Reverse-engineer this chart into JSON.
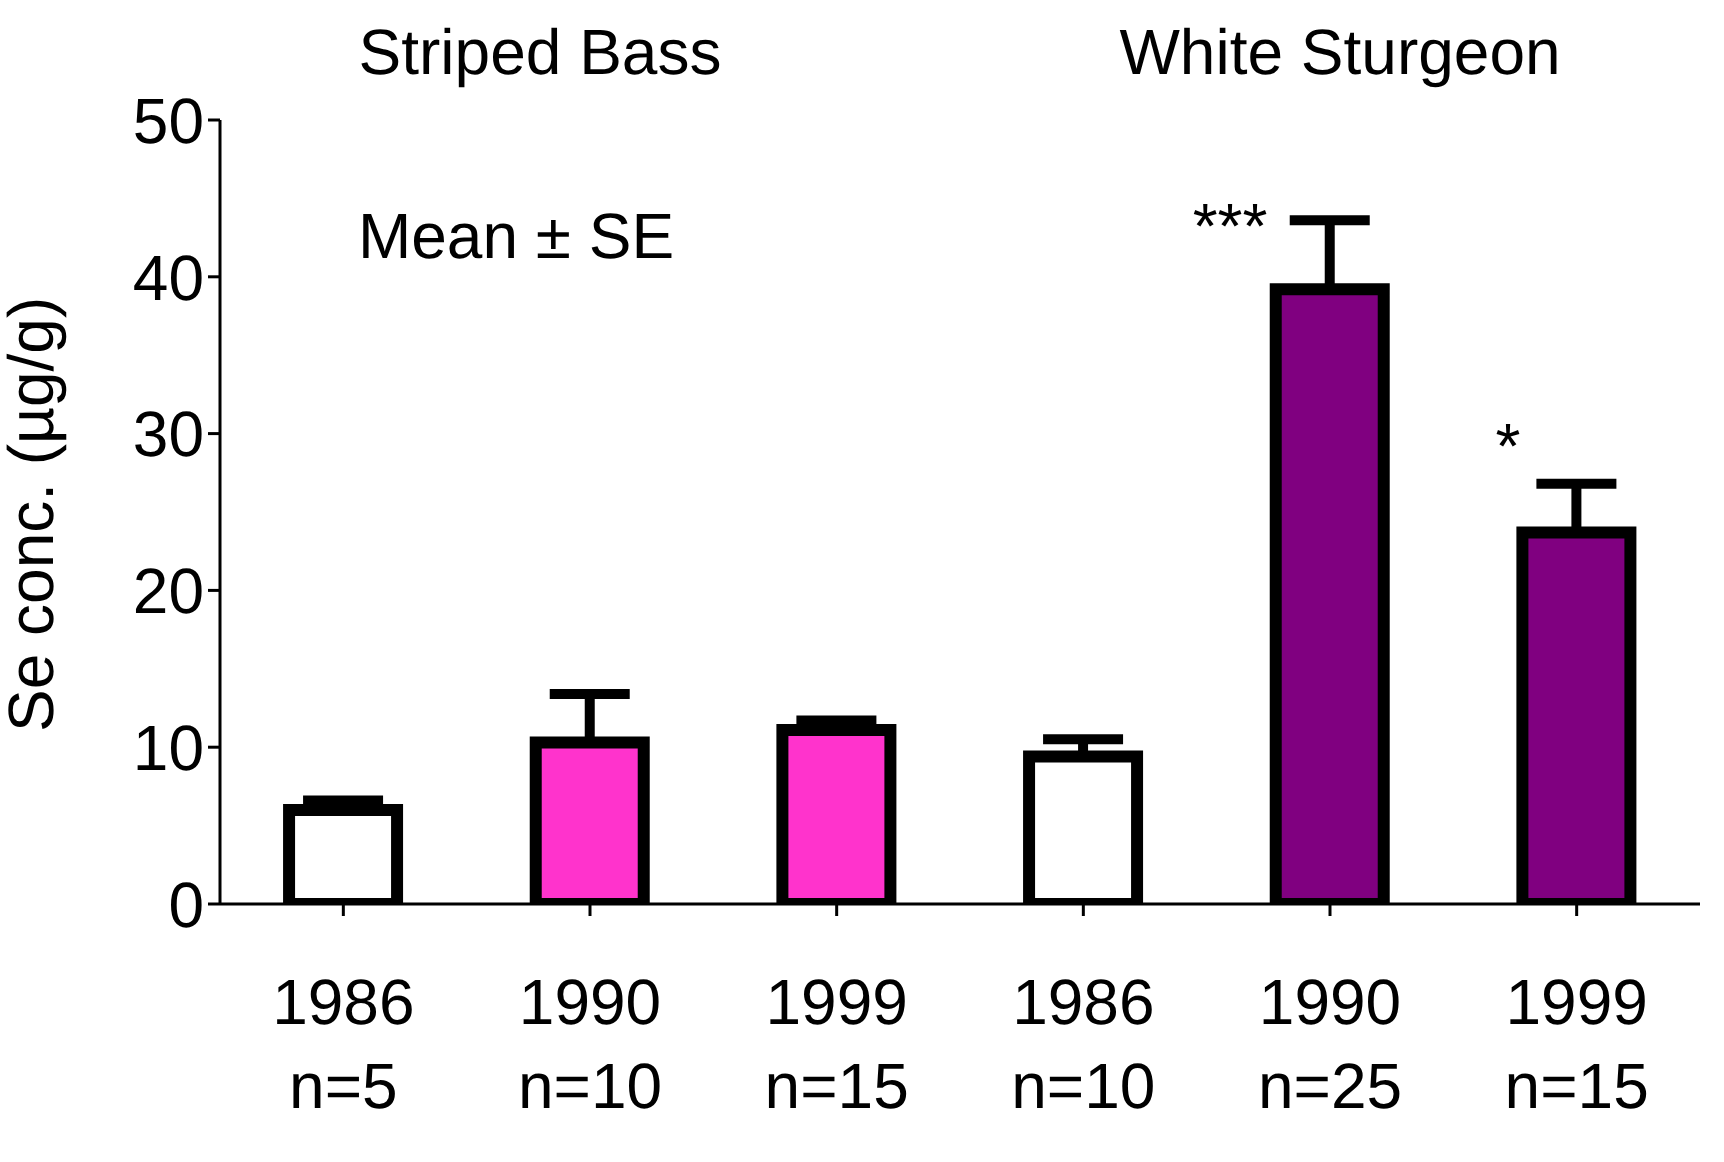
{
  "chart_data": {
    "type": "bar",
    "ylabel": "Se conc. (µg/g)",
    "categories": [
      "1986\nn=5",
      "1990\nn=10",
      "1999\nn=15",
      "1986\nn=10",
      "1990\nn=25",
      "1999\nn=15"
    ],
    "values": [
      6.0,
      10.3,
      11.1,
      9.4,
      39.2,
      23.7
    ],
    "colors": [
      "#ffffff",
      "#ff33cc",
      "#ff33cc",
      "#ffffff",
      "#800080",
      "#800080"
    ],
    "errors": [
      [
        6.0,
        6.6
      ],
      [
        10.3,
        13.4
      ],
      [
        11.1,
        11.7
      ],
      [
        9.4,
        10.5
      ],
      [
        39.2,
        43.6
      ],
      [
        23.7,
        26.8
      ]
    ],
    "ylim": [
      0,
      50
    ],
    "yticks": [
      0,
      10,
      20,
      30,
      40,
      50
    ],
    "grid": false,
    "legend": false,
    "annotations": [
      "Striped Bass",
      "White Sturgeon",
      "Mean ± SE",
      "***",
      "*"
    ]
  }
}
